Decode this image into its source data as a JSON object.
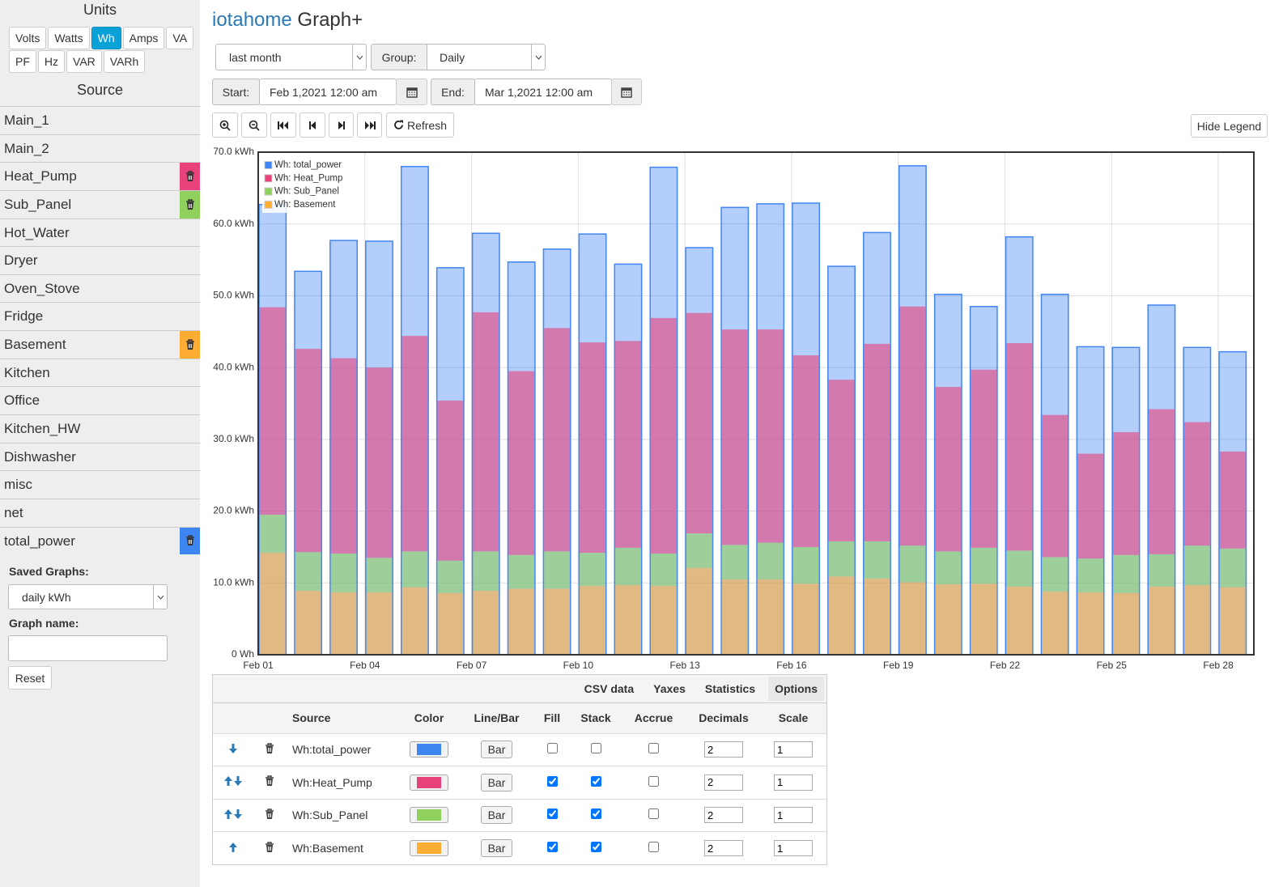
{
  "sidebar": {
    "units_title": "Units",
    "units": [
      "Volts",
      "Watts",
      "Wh",
      "Amps",
      "VA",
      "PF",
      "Hz",
      "VAR",
      "VARh"
    ],
    "selected_unit": "Wh",
    "source_title": "Source",
    "sources": [
      {
        "name": "Main_1"
      },
      {
        "name": "Main_2"
      },
      {
        "name": "Heat_Pump",
        "color": "#e8417c"
      },
      {
        "name": "Sub_Panel",
        "color": "#8fd15c"
      },
      {
        "name": "Hot_Water"
      },
      {
        "name": "Dryer"
      },
      {
        "name": "Oven_Stove"
      },
      {
        "name": "Fridge"
      },
      {
        "name": "Basement",
        "color": "#ffad33"
      },
      {
        "name": "Kitchen"
      },
      {
        "name": "Office"
      },
      {
        "name": "Kitchen_HW"
      },
      {
        "name": "Dishwasher"
      },
      {
        "name": "misc"
      },
      {
        "name": "net"
      },
      {
        "name": "total_power",
        "color": "#3d85f0"
      }
    ],
    "saved_graphs_label": "Saved Graphs:",
    "saved_graph": "daily kWh",
    "graph_name_label": "Graph name:",
    "reset": "Reset"
  },
  "header": {
    "brand": "iotahome",
    "title": "Graph+"
  },
  "controls": {
    "period": "last month",
    "group_label": "Group:",
    "group": "Daily",
    "start_label": "Start:",
    "start": "Feb 1,2021 12:00 am",
    "end_label": "End:",
    "end": "Mar 1,2021 12:00 am",
    "refresh": "Refresh",
    "hide_legend": "Hide Legend"
  },
  "chart_data": {
    "type": "bar",
    "legend": "upper left",
    "grid": true,
    "categories": [
      "Feb 01",
      null,
      null,
      "Feb 04",
      null,
      null,
      "Feb 07",
      null,
      null,
      "Feb 10",
      null,
      null,
      "Feb 13",
      null,
      null,
      "Feb 16",
      null,
      null,
      "Feb 19",
      null,
      null,
      "Feb 22",
      null,
      null,
      "Feb 25",
      null,
      null,
      "Feb 28"
    ],
    "ylim": [
      0,
      70
    ],
    "yticks": [
      {
        "value": 0,
        "label": "0 Wh"
      },
      {
        "value": 10,
        "label": "10.0 kWh"
      },
      {
        "value": 20,
        "label": "20.0 kWh"
      },
      {
        "value": 30,
        "label": "30.0 kWh"
      },
      {
        "value": 40,
        "label": "40.0 kWh"
      },
      {
        "value": 50,
        "label": "50.0 kWh"
      },
      {
        "value": 60,
        "label": "60.0 kWh"
      },
      {
        "value": 70,
        "label": "70.0 kWh"
      }
    ],
    "series": [
      {
        "name": "Wh: total_power",
        "color": "#4285f4",
        "stack": false,
        "values": [
          62.7,
          53.4,
          57.7,
          57.6,
          68.0,
          53.9,
          58.7,
          54.7,
          56.5,
          58.6,
          54.4,
          67.9,
          56.7,
          62.3,
          62.8,
          62.9,
          54.1,
          58.8,
          68.1,
          50.2,
          48.5,
          58.2,
          50.2,
          42.9,
          42.8,
          48.7,
          42.8,
          42.2
        ]
      },
      {
        "name": "Wh: Heat_Pump",
        "color": "#e8417c",
        "stack": true,
        "values": [
          28.9,
          28.3,
          27.2,
          26.5,
          30.0,
          22.3,
          33.3,
          25.6,
          31.1,
          29.3,
          28.8,
          32.8,
          30.7,
          30.0,
          29.7,
          26.7,
          22.5,
          27.5,
          33.3,
          22.9,
          24.8,
          28.9,
          19.8,
          14.6,
          17.1,
          20.2,
          17.2,
          13.5
        ]
      },
      {
        "name": "Wh: Sub_Panel",
        "color": "#8fd15c",
        "stack": true,
        "values": [
          5.3,
          5.4,
          5.4,
          4.8,
          5.0,
          4.5,
          5.5,
          4.7,
          5.2,
          4.6,
          5.2,
          4.5,
          4.8,
          4.8,
          5.1,
          5.1,
          4.9,
          5.2,
          5.1,
          4.6,
          5.0,
          5.0,
          4.8,
          4.7,
          5.3,
          4.5,
          5.5,
          5.4
        ]
      },
      {
        "name": "Wh: Basement",
        "color": "#ffad33",
        "stack": true,
        "values": [
          14.2,
          8.9,
          8.7,
          8.7,
          9.4,
          8.6,
          8.9,
          9.2,
          9.2,
          9.6,
          9.7,
          9.6,
          12.1,
          10.5,
          10.5,
          9.9,
          10.9,
          10.6,
          10.1,
          9.8,
          9.9,
          9.5,
          8.8,
          8.7,
          8.6,
          9.5,
          9.7,
          9.4
        ]
      }
    ]
  },
  "options_table": {
    "tabs": [
      "CSV data",
      "Yaxes",
      "Statistics",
      "Options"
    ],
    "active_tab": "Options",
    "columns": [
      "Source",
      "Color",
      "Line/Bar",
      "Fill",
      "Stack",
      "Accrue",
      "Decimals",
      "Scale"
    ],
    "rows": [
      {
        "source": "Wh:total_power",
        "color": "#3d85f0",
        "type": "Bar",
        "fill": false,
        "stack": false,
        "accrue": false,
        "decimals": 2,
        "scale": 1
      },
      {
        "source": "Wh:Heat_Pump",
        "color": "#e8417c",
        "type": "Bar",
        "fill": true,
        "stack": true,
        "accrue": false,
        "decimals": 2,
        "scale": 1
      },
      {
        "source": "Wh:Sub_Panel",
        "color": "#8fd15c",
        "type": "Bar",
        "fill": true,
        "stack": true,
        "accrue": false,
        "decimals": 2,
        "scale": 1
      },
      {
        "source": "Wh:Basement",
        "color": "#ffad33",
        "type": "Bar",
        "fill": true,
        "stack": true,
        "accrue": false,
        "decimals": 2,
        "scale": 1
      }
    ]
  }
}
